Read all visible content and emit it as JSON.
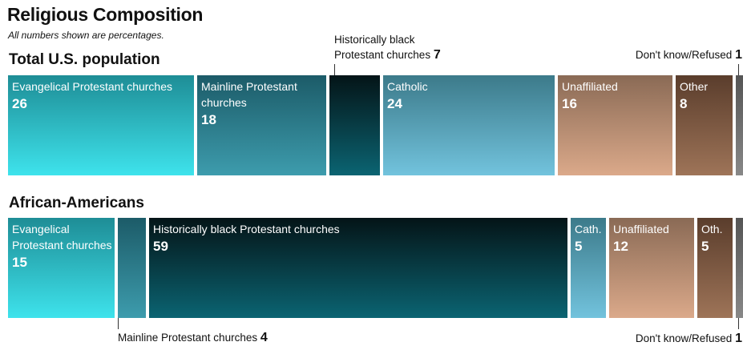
{
  "title": "Religious Composition",
  "subtitle": "All numbers shown are percentages.",
  "colors": {
    "evangelical": [
      "#1e8d96",
      "#3ee3ec"
    ],
    "mainline": [
      "#1c5b68",
      "#3d9cad"
    ],
    "black_protestant": [
      "#041417",
      "#0b6472"
    ],
    "catholic": [
      "#3c7a8a",
      "#72c3dd"
    ],
    "unaffiliated": [
      "#8a6a55",
      "#dba98a"
    ],
    "other": [
      "#5a3d2c",
      "#9e7458"
    ],
    "dont_know": [
      "#555555",
      "#888888"
    ]
  },
  "chart_data": [
    {
      "type": "bar",
      "title": "Total U.S. population",
      "orientation": "horizontal-stacked",
      "categories": [
        "Evangelical Protestant churches",
        "Mainline Protestant churches",
        "Historically black Protestant churches",
        "Catholic",
        "Unaffiliated",
        "Other",
        "Don't know/Refused"
      ],
      "segments": [
        {
          "key": "evangelical",
          "label": "Evangelical Protestant churches",
          "value": 26,
          "display_label": "Evangelical Protestant churches",
          "value_label": "26"
        },
        {
          "key": "mainline",
          "label": "Mainline Protestant churches",
          "value": 18,
          "display_label": "Mainline Protestant churches",
          "value_label": "18"
        },
        {
          "key": "black_protestant",
          "label": "Historically black Protestant churches",
          "value": 7,
          "display_label": "",
          "value_label": ""
        },
        {
          "key": "catholic",
          "label": "Catholic",
          "value": 24,
          "display_label": "Catholic",
          "value_label": "24"
        },
        {
          "key": "unaffiliated",
          "label": "Unaffiliated",
          "value": 16,
          "display_label": "Unaffiliated",
          "value_label": "16"
        },
        {
          "key": "other",
          "label": "Other",
          "value": 8,
          "display_label": "Other",
          "value_label": "8"
        },
        {
          "key": "dont_know",
          "label": "Don't know/Refused",
          "value": 1,
          "display_label": "",
          "value_label": ""
        }
      ],
      "callouts": [
        {
          "text": "Historically black\nProtestant churches",
          "value": "7"
        },
        {
          "text": "Don't know/Refused",
          "value": "1"
        }
      ]
    },
    {
      "type": "bar",
      "title": "African-Americans",
      "orientation": "horizontal-stacked",
      "categories": [
        "Evangelical Protestant churches",
        "Mainline Protestant churches",
        "Historically black Protestant churches",
        "Catholic",
        "Unaffiliated",
        "Other",
        "Don't know/Refused"
      ],
      "segments": [
        {
          "key": "evangelical",
          "label": "Evangelical Protestant churches",
          "value": 15,
          "display_label": "Evangelical Protestant churches",
          "value_label": "15"
        },
        {
          "key": "mainline",
          "label": "Mainline Protestant churches",
          "value": 4,
          "display_label": "",
          "value_label": ""
        },
        {
          "key": "black_protestant",
          "label": "Historically black Protestant churches",
          "value": 59,
          "display_label": "Historically black Protestant churches",
          "value_label": "59"
        },
        {
          "key": "catholic",
          "label": "Catholic",
          "value": 5,
          "display_label": "Cath.",
          "value_label": "5"
        },
        {
          "key": "unaffiliated",
          "label": "Unaffiliated",
          "value": 12,
          "display_label": "Unaffiliated",
          "value_label": "12"
        },
        {
          "key": "other",
          "label": "Other",
          "value": 5,
          "display_label": "Oth.",
          "value_label": "5"
        },
        {
          "key": "dont_know",
          "label": "Don't know/Refused",
          "value": 1,
          "display_label": "",
          "value_label": ""
        }
      ],
      "callouts": [
        {
          "text": "Mainline Protestant churches",
          "value": "4"
        },
        {
          "text": "Don't know/Refused",
          "value": "1"
        }
      ]
    }
  ]
}
